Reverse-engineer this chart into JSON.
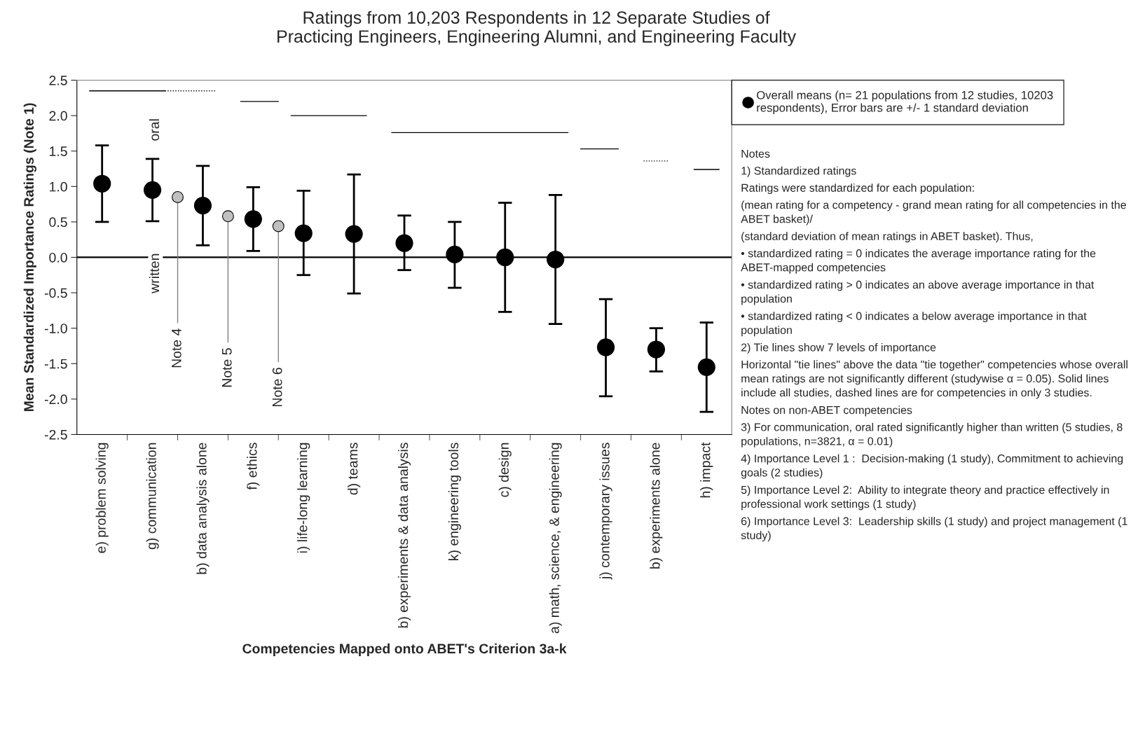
{
  "chart_data": {
    "type": "scatter",
    "title": "Ratings from 10,203 Respondents in 12 Separate Studies of\nPracticing Engineers, Engineering Alumni, and Engineering Faculty",
    "xlabel": "Competencies Mapped onto ABET's Criterion 3a-k",
    "ylabel": "Mean Standardized Importance Ratings (Note 1)",
    "categories": [
      null,
      null,
      "e) problem solving",
      null,
      null,
      null,
      "g) communication",
      null,
      null,
      null,
      "b) data analysis alone",
      null,
      null,
      null,
      "f) ethics",
      null,
      null,
      null,
      "i) life-long learning",
      null,
      null,
      null,
      "d) teams",
      null,
      null,
      null,
      "b) experiments & data analysis",
      null,
      null,
      null,
      "k) engineering tools",
      null,
      null,
      null,
      "c) design",
      null,
      null,
      null,
      "a) math, science, & engineering",
      null,
      null,
      null,
      "j) contemporary issues",
      null,
      null,
      null,
      "b) experiments alone",
      null,
      null,
      null,
      "h) impact",
      null
    ],
    "series": [
      {
        "name": "Overall means (n= 21 populations from 12 studies, 10203 respondents), Error bars are +/- 1 standard deviation",
        "color": "#000000",
        "marker": "circle",
        "values": [
          null,
          null,
          1.04,
          null,
          null,
          null,
          0.95,
          null,
          null,
          null,
          0.73,
          null,
          null,
          null,
          0.54,
          null,
          null,
          null,
          0.34,
          null,
          null,
          null,
          0.33,
          null,
          null,
          null,
          0.2,
          null,
          null,
          null,
          0.04,
          null,
          null,
          null,
          0.0,
          null,
          null,
          null,
          -0.03,
          null,
          null,
          null,
          -1.27,
          null,
          null,
          null,
          -1.3,
          null,
          null,
          null,
          -1.55,
          null
        ],
        "errors": [
          null,
          null,
          [
            0.5,
            1.58
          ],
          null,
          null,
          null,
          [
            0.51,
            1.39
          ],
          null,
          null,
          null,
          [
            0.17,
            1.29
          ],
          null,
          null,
          null,
          [
            0.09,
            0.99
          ],
          null,
          null,
          null,
          [
            -0.25,
            0.94
          ],
          null,
          null,
          null,
          [
            -0.51,
            1.17
          ],
          null,
          null,
          null,
          [
            -0.18,
            0.59
          ],
          null,
          null,
          null,
          [
            -0.43,
            0.5
          ],
          null,
          null,
          null,
          [
            -0.77,
            0.77
          ],
          null,
          null,
          null,
          [
            -0.94,
            0.88
          ],
          null,
          null,
          null,
          [
            -1.96,
            -0.59
          ],
          null,
          null,
          null,
          [
            -1.61,
            -1.0
          ],
          null,
          null,
          null,
          [
            -2.18,
            -0.92
          ],
          null
        ]
      },
      {
        "color": "#c0c0c0",
        "marker": "circle",
        "values": [
          null,
          null,
          null,
          null,
          null,
          null,
          null,
          null,
          0.85,
          null,
          null,
          null,
          0.58,
          null,
          null,
          null,
          0.44,
          null,
          null,
          null,
          null,
          null,
          null,
          null,
          null,
          null,
          null,
          null,
          null,
          null,
          null,
          null,
          null,
          null,
          null,
          null,
          null,
          null,
          null,
          null,
          null,
          null,
          null,
          null,
          null,
          null,
          null,
          null,
          null,
          null,
          null,
          null
        ]
      },
      {
        "type": "line",
        "color": "#000000",
        "line_style": "solid",
        "values": [
          null,
          2.35,
          2.35,
          2.35,
          2.35,
          2.35,
          2.35,
          2.35,
          null,
          null,
          null,
          null,
          null,
          null,
          null,
          null,
          null,
          null,
          null,
          null,
          null,
          null,
          null,
          null,
          null,
          null,
          null,
          null,
          null,
          null,
          null,
          null,
          null,
          null,
          null,
          null,
          null,
          null,
          null,
          null,
          null,
          null,
          null,
          null,
          null,
          null,
          null,
          null,
          null,
          null,
          null,
          null
        ]
      },
      {
        "type": "line",
        "color": "#000000",
        "line_style": "dotted",
        "values": [
          null,
          null,
          null,
          null,
          null,
          null,
          null,
          2.35,
          2.35,
          2.35,
          2.35,
          2.35,
          null,
          null,
          null,
          null,
          null,
          null,
          null,
          null,
          null,
          null,
          null,
          null,
          null,
          null,
          null,
          null,
          null,
          null,
          null,
          null,
          null,
          null,
          null,
          null,
          null,
          null,
          null,
          null,
          null,
          null,
          null,
          null,
          null,
          null,
          null,
          null,
          null,
          null,
          null,
          null
        ]
      },
      {
        "type": "line",
        "color": "#000000",
        "line_style": "solid",
        "values": [
          null,
          null,
          null,
          null,
          null,
          null,
          null,
          null,
          null,
          null,
          null,
          null,
          null,
          2.2,
          2.2,
          2.2,
          2.2,
          null,
          null,
          null,
          null,
          null,
          null,
          null,
          null,
          null,
          null,
          null,
          null,
          null,
          null,
          null,
          null,
          null,
          null,
          null,
          null,
          null,
          null,
          null,
          null,
          null,
          null,
          null,
          null,
          null,
          null,
          null,
          null,
          null,
          null,
          null
        ]
      },
      {
        "type": "line",
        "color": "#000000",
        "line_style": "solid",
        "values": [
          null,
          null,
          null,
          null,
          null,
          null,
          null,
          null,
          null,
          null,
          null,
          null,
          null,
          null,
          null,
          null,
          null,
          2.0,
          2.0,
          2.0,
          2.0,
          2.0,
          2.0,
          2.0,
          null,
          null,
          null,
          null,
          null,
          null,
          null,
          null,
          null,
          null,
          null,
          null,
          null,
          null,
          null,
          null,
          null,
          null,
          null,
          null,
          null,
          null,
          null,
          null,
          null,
          null,
          null,
          null
        ]
      },
      {
        "type": "line",
        "color": "#000000",
        "line_style": "solid",
        "values": [
          null,
          null,
          null,
          null,
          null,
          null,
          null,
          null,
          null,
          null,
          null,
          null,
          null,
          null,
          null,
          null,
          null,
          null,
          null,
          null,
          null,
          null,
          null,
          null,
          null,
          1.76,
          1.76,
          1.76,
          1.76,
          1.76,
          1.76,
          1.76,
          1.76,
          1.76,
          1.76,
          1.76,
          1.76,
          1.76,
          1.76,
          1.76,
          null,
          null,
          null,
          null,
          null,
          null,
          null,
          null,
          null,
          null,
          null,
          null
        ]
      },
      {
        "type": "line",
        "color": "#000000",
        "line_style": "solid",
        "values": [
          null,
          null,
          null,
          null,
          null,
          null,
          null,
          null,
          null,
          null,
          null,
          null,
          null,
          null,
          null,
          null,
          null,
          null,
          null,
          null,
          null,
          null,
          null,
          null,
          null,
          null,
          null,
          null,
          null,
          null,
          null,
          null,
          null,
          null,
          null,
          null,
          null,
          null,
          null,
          null,
          1.53,
          1.53,
          1.53,
          1.53,
          null,
          null,
          null,
          null,
          null,
          null,
          null,
          null
        ]
      },
      {
        "type": "line",
        "color": "#000000",
        "line_style": "dotted",
        "values": [
          null,
          null,
          null,
          null,
          null,
          null,
          null,
          null,
          null,
          null,
          null,
          null,
          null,
          null,
          null,
          null,
          null,
          null,
          null,
          null,
          null,
          null,
          null,
          null,
          null,
          null,
          null,
          null,
          null,
          null,
          null,
          null,
          null,
          null,
          null,
          null,
          null,
          null,
          null,
          null,
          null,
          null,
          null,
          null,
          null,
          1.36,
          1.36,
          1.36,
          null,
          null,
          null,
          null
        ]
      },
      {
        "type": "line",
        "color": "#000000",
        "line_style": "solid",
        "values": [
          null,
          null,
          null,
          null,
          null,
          null,
          null,
          null,
          null,
          null,
          null,
          null,
          null,
          null,
          null,
          null,
          null,
          null,
          null,
          null,
          null,
          null,
          null,
          null,
          null,
          null,
          null,
          null,
          null,
          null,
          null,
          null,
          null,
          null,
          null,
          null,
          null,
          null,
          null,
          null,
          null,
          null,
          null,
          null,
          null,
          null,
          null,
          null,
          null,
          1.24,
          1.24,
          1.24
        ]
      }
    ],
    "ylim": [
      -2.5,
      2.5
    ],
    "yticks": [
      -2.5,
      {
        "value": -2,
        "label": "-2.0"
      },
      -1.5,
      {
        "value": -1,
        "label": "-1.0"
      },
      -0.5,
      {
        "value": 0,
        "label": "0.0"
      },
      0.5,
      {
        "value": 1,
        "label": "1.0"
      },
      1.5,
      {
        "value": 2,
        "label": "2.0"
      },
      2.5
    ],
    "ref_lines": [
      {
        "axis": "y",
        "value": 0,
        "color": "#000000",
        "line_style": "solid"
      }
    ],
    "legend": "right",
    "annotations": [
      "oral",
      "written",
      {
        "text": "Note 4",
        "y": 0.85
      },
      {
        "text": "Note 5",
        "y": 0.58
      },
      {
        "text": "Note 6",
        "y": 0.44
      },
      "Notes",
      "1) Standardized ratings",
      "Ratings were standardized for each population:",
      "(mean rating for a competency - grand mean rating for all competencies in the ABET basket)/",
      "(standard deviation of mean ratings in ABET basket). Thus,",
      "• standardized rating = 0 indicates the average importance rating for the ABET-mapped competencies",
      "• standardized rating > 0 indicates an above average importance in that population",
      "• standardized rating < 0 indicates a below average importance in that population",
      "2) Tie lines show 7 levels of importance",
      "Horizontal \"tie lines\" above the data \"tie together\" competencies whose overall mean ratings are not significantly different (studywise α = 0.05). Solid lines include all studies, dashed lines are for competencies in only 3 studies.",
      "Notes on non-ABET competencies",
      "3) For communication, oral rated significantly higher than written (5 studies, 8 populations, n=3821, α = 0.01)",
      "4) Importance Level 1 :  Decision-making (1 study), Commitment to achieving goals (2 studies)",
      "5) Importance Level 2:  Ability to integrate theory and practice effectively in professional work settings (1 study)",
      "6) Importance Level 3:  Leadership skills (1 study) and project management (1 study)"
    ]
  }
}
